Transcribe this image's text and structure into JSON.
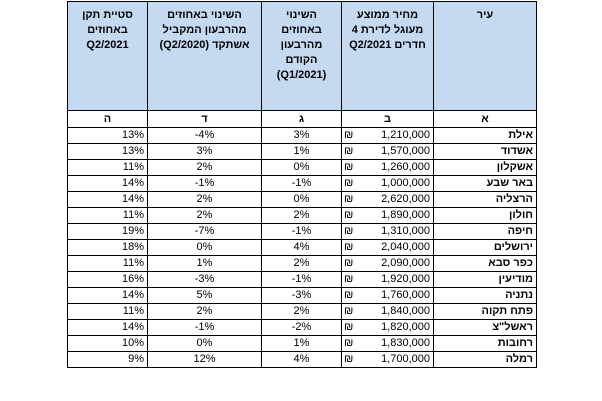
{
  "headers": {
    "col_e": "סטיית תקן באחוזים Q2/2021",
    "col_d": "השינוי באחוזים מהרבעון המקביל אשתקד (Q2/2020)",
    "col_c": "השינוי באחוזים מהרבעון הקודם (Q1/2021)",
    "col_b": "מחיר ממוצע מעוגל לדירת 4 חדרים Q2/2021",
    "col_a": "עיר"
  },
  "letters": {
    "e": "ה",
    "d": "ד",
    "c": "ג",
    "b": "ב",
    "a": "א"
  },
  "currency_symbol": "₪",
  "rows": [
    {
      "city": "אילת",
      "price": "1,210,000",
      "qoq": "3%",
      "yoy": "-4%",
      "sd": "13%"
    },
    {
      "city": "אשדוד",
      "price": "1,570,000",
      "qoq": "1%",
      "yoy": "3%",
      "sd": "13%"
    },
    {
      "city": "אשקלון",
      "price": "1,260,000",
      "qoq": "0%",
      "yoy": "2%",
      "sd": "11%"
    },
    {
      "city": "באר שבע",
      "price": "1,000,000",
      "qoq": "-1%",
      "yoy": "-1%",
      "sd": "14%"
    },
    {
      "city": "הרצליה",
      "price": "2,620,000",
      "qoq": "0%",
      "yoy": "2%",
      "sd": "14%"
    },
    {
      "city": "חולון",
      "price": "1,890,000",
      "qoq": "2%",
      "yoy": "2%",
      "sd": "11%"
    },
    {
      "city": "חיפה",
      "price": "1,310,000",
      "qoq": "-1%",
      "yoy": "-7%",
      "sd": "19%"
    },
    {
      "city": "ירושלים",
      "price": "2,040,000",
      "qoq": "4%",
      "yoy": "0%",
      "sd": "18%"
    },
    {
      "city": "כפר סבא",
      "price": "2,090,000",
      "qoq": "2%",
      "yoy": "1%",
      "sd": "11%"
    },
    {
      "city": "מודיעין",
      "price": "1,920,000",
      "qoq": "-1%",
      "yoy": "-3%",
      "sd": "16%"
    },
    {
      "city": "נתניה",
      "price": "1,760,000",
      "qoq": "-3%",
      "yoy": "5%",
      "sd": "14%"
    },
    {
      "city": "פתח תקוה",
      "price": "1,840,000",
      "qoq": "2%",
      "yoy": "2%",
      "sd": "11%"
    },
    {
      "city": "ראשל\"צ",
      "price": "1,820,000",
      "qoq": "-2%",
      "yoy": "-1%",
      "sd": "14%"
    },
    {
      "city": "רחובות",
      "price": "1,830,000",
      "qoq": "1%",
      "yoy": "0%",
      "sd": "10%"
    },
    {
      "city": "רמלה",
      "price": "1,700,000",
      "qoq": "4%",
      "yoy": "12%",
      "sd": "9%"
    }
  ]
}
